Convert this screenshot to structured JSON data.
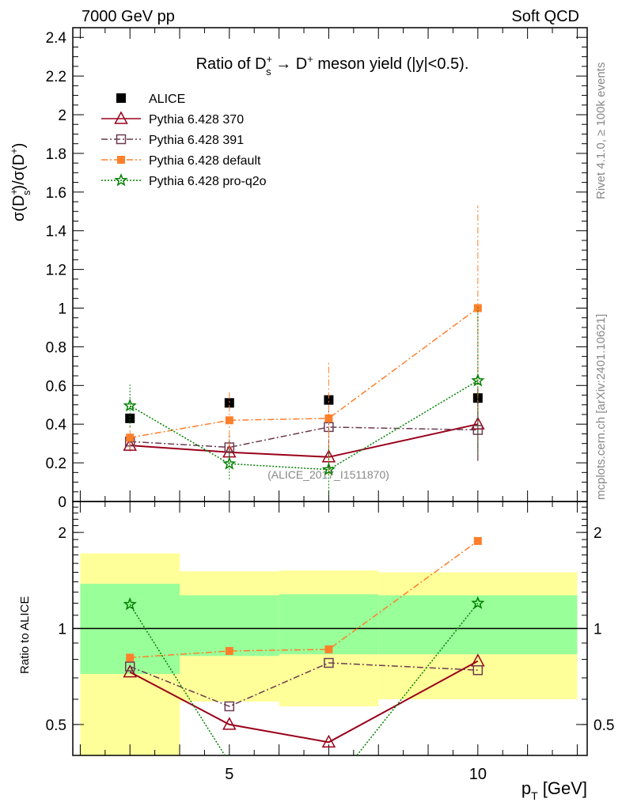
{
  "header": {
    "left": "7000 GeV pp",
    "right": "Soft QCD"
  },
  "side": {
    "rivet": "Rivet 4.1.0, ≥ 100k events",
    "mcplots": "mcplots.cern.ch [arXiv:2401.10621]"
  },
  "title_parts": {
    "a": "Ratio of D",
    "sub": "s",
    "sup1": "+",
    "b": " → D",
    "sup2": "+",
    "c": " meson yield (|y|<0.5)."
  },
  "ylabel_parts": {
    "a": "σ(D",
    "sub": "s",
    "sup1": "+",
    "b": ")/σ(D",
    "sup2": "+",
    "c": ")"
  },
  "ratio_ylabel": "Ratio to ALICE",
  "xlabel_parts": {
    "a": "p",
    "sub": "T",
    "b": " [GeV]"
  },
  "watermark": "(ALICE_2017_I1511870)",
  "colors": {
    "ALICE": "#000000",
    "p370": "#99001a",
    "p391": "#6b3a50",
    "default": "#ff7f2a",
    "proq2o": "#008000",
    "band_outer": "#ffff99",
    "band_inner": "#99ff99"
  },
  "chart_data": [
    {
      "type": "line",
      "title": "Ratio of D_s^+ → D^+ meson yield (|y|<0.5).",
      "xlabel": "p_T [GeV]",
      "ylabel": "σ(D_s^+)/σ(D^+)",
      "xlim": [
        1.85,
        12.2
      ],
      "ylim": [
        0,
        2.45
      ],
      "yticks": [
        "0",
        "0.2",
        "0.4",
        "0.6",
        "0.8",
        "1",
        "1.2",
        "1.4",
        "1.6",
        "1.8",
        "2",
        "2.2",
        "2.4"
      ],
      "legend_position": "top-left",
      "x": [
        3,
        5,
        7,
        10
      ],
      "series": [
        {
          "name": "ALICE",
          "key": "ALICE",
          "marker": "filled-square",
          "values": [
            0.43,
            0.51,
            0.525,
            0.535
          ],
          "err": [
            0.02,
            0.02,
            0.02,
            0.03
          ]
        },
        {
          "name": "Pythia 6.428 370",
          "key": "p370",
          "marker": "open-triangle",
          "dash": "",
          "values": [
            0.29,
            0.255,
            0.23,
            0.4
          ],
          "err": [
            0.03,
            0.04,
            0.06,
            0.19
          ]
        },
        {
          "name": "Pythia 6.428 391",
          "key": "p391",
          "marker": "open-square",
          "dash": "8,3,2,3",
          "values": [
            0.31,
            0.28,
            0.385,
            0.37
          ],
          "err": [
            0.03,
            0.06,
            0.1,
            0.16
          ]
        },
        {
          "name": "Pythia 6.428 default",
          "key": "default",
          "marker": "filled-square-small",
          "dash": "8,3,2,3",
          "values": [
            0.33,
            0.42,
            0.43,
            1.0
          ],
          "err": [
            0.06,
            0.15,
            0.29,
            0.53
          ]
        },
        {
          "name": "Pythia 6.428 pro-q2o",
          "key": "proq2o",
          "marker": "star",
          "dash": "2,2",
          "values": [
            0.495,
            0.195,
            0.165,
            0.625
          ],
          "err": [
            0.11,
            0.08,
            0.13,
            0.38
          ]
        }
      ]
    },
    {
      "type": "line",
      "ylabel": "Ratio to ALICE",
      "yscale": "log",
      "xlim": [
        1.85,
        12.2
      ],
      "ylim": [
        0.4,
        2.5
      ],
      "yticks": [
        "0.5",
        "1",
        "2"
      ],
      "xticks": [
        "5",
        "10"
      ],
      "bins": [
        [
          2,
          4
        ],
        [
          4,
          6
        ],
        [
          6,
          8
        ],
        [
          8,
          12
        ]
      ],
      "band_outer": [
        [
          0.3,
          1.72
        ],
        [
          0.59,
          1.51
        ],
        [
          0.57,
          1.52
        ],
        [
          0.6,
          1.5
        ]
      ],
      "band_inner": [
        [
          0.72,
          1.38
        ],
        [
          0.82,
          1.27
        ],
        [
          0.83,
          1.28
        ],
        [
          0.83,
          1.27
        ]
      ],
      "x": [
        3,
        5,
        7,
        10
      ],
      "series": [
        {
          "name": "Pythia 6.428 370",
          "key": "p370",
          "marker": "open-triangle",
          "dash": "",
          "values": [
            0.73,
            0.5,
            0.44,
            0.79
          ]
        },
        {
          "name": "Pythia 6.428 391",
          "key": "p391",
          "marker": "open-square",
          "dash": "8,3,2,3",
          "values": [
            0.76,
            0.57,
            0.78,
            0.74
          ]
        },
        {
          "name": "Pythia 6.428 default",
          "key": "default",
          "marker": "filled-square-small",
          "dash": "8,3,2,3",
          "values": [
            0.81,
            0.85,
            0.86,
            1.88
          ]
        },
        {
          "name": "Pythia 6.428 pro-q2o",
          "key": "proq2o",
          "marker": "star",
          "dash": "2,2",
          "values": [
            1.19,
            0.38,
            0.31,
            1.2
          ]
        }
      ]
    }
  ]
}
